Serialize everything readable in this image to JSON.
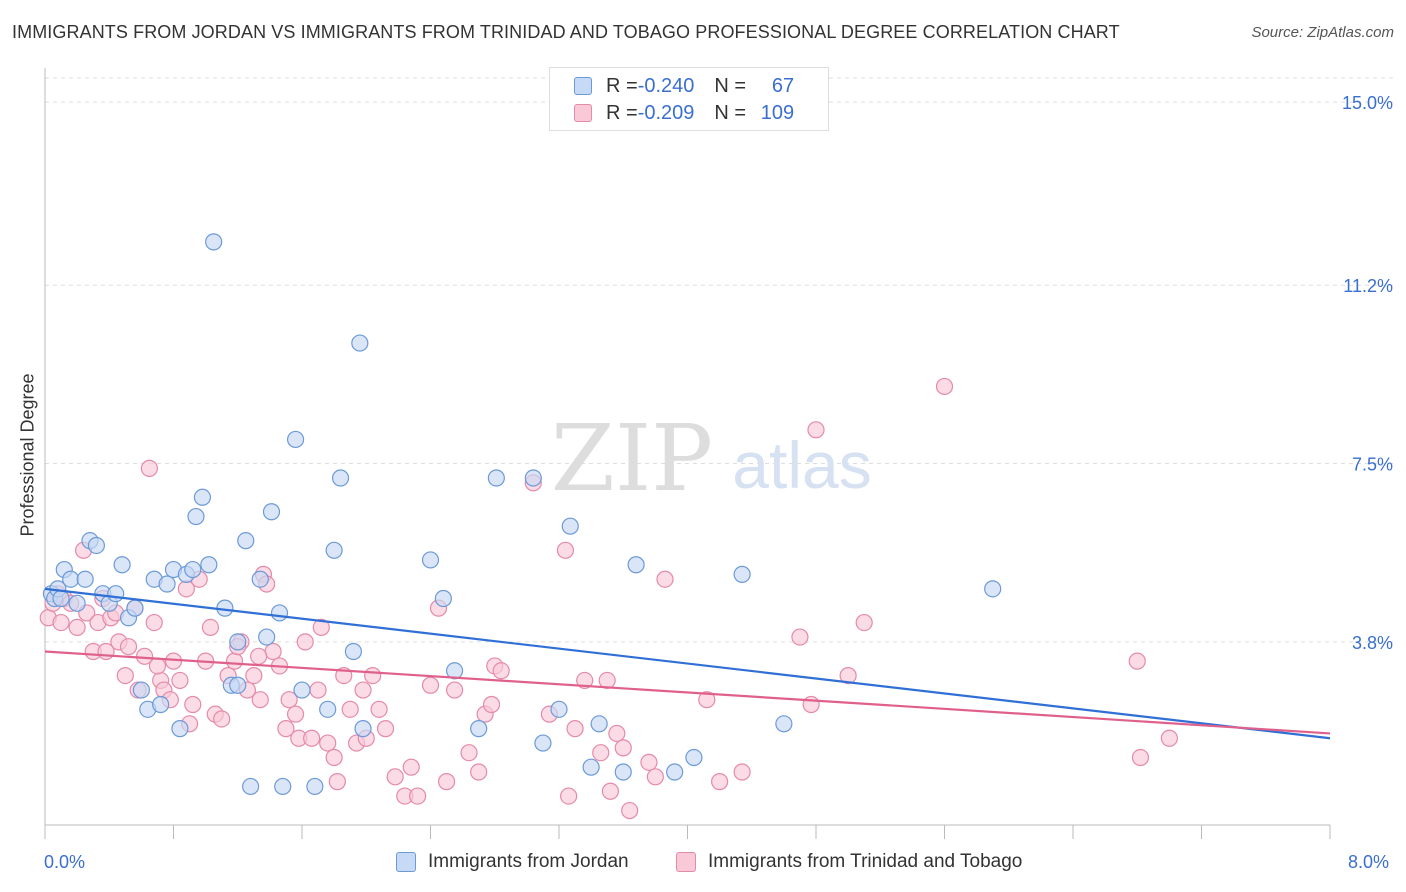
{
  "title": "IMMIGRANTS FROM JORDAN VS IMMIGRANTS FROM TRINIDAD AND TOBAGO PROFESSIONAL DEGREE CORRELATION CHART",
  "source": "Source: ZipAtlas.com",
  "watermark": {
    "zip": "ZIP",
    "atlas": "atlas"
  },
  "legend": {
    "rows": [
      {
        "r_label": "R = ",
        "r_value": "-0.240",
        "n_label": "N = ",
        "n_value": "67"
      },
      {
        "r_label": "R = ",
        "r_value": "-0.209",
        "n_label": "N = ",
        "n_value": "109"
      }
    ]
  },
  "bottom_legend": [
    "Immigrants from Jordan",
    "Immigrants from Trinidad and Tobago"
  ],
  "colors": {
    "jordan_fill": "#c6d9f5",
    "jordan_stroke": "#6c9ad8",
    "jordan_line": "#2f6fd6",
    "tt_fill": "#f9c9d8",
    "tt_stroke": "#e58aa8",
    "tt_line": "#e0608c",
    "tick_text": "#3a6fd0",
    "grid": "#dddddd"
  },
  "chart_data": {
    "type": "scatter",
    "title": "IMMIGRANTS FROM JORDAN VS IMMIGRANTS FROM TRINIDAD AND TOBAGO PROFESSIONAL DEGREE CORRELATION CHART",
    "xlabel": "",
    "ylabel": "Professional Degree",
    "xlim": [
      0,
      8.0
    ],
    "ylim": [
      0,
      15.5
    ],
    "x_tick_labels": [
      "0.0%",
      "8.0%"
    ],
    "y_ticks": [
      3.8,
      7.5,
      11.2,
      15.0
    ],
    "y_tick_labels": [
      "3.8%",
      "7.5%",
      "11.2%",
      "15.0%"
    ],
    "grid": "horizontal dashed",
    "series": [
      {
        "name": "Immigrants from Jordan",
        "r": -0.24,
        "n": 67,
        "trend": {
          "x": [
            0,
            8.0
          ],
          "y": [
            4.9,
            1.8
          ]
        },
        "points": [
          [
            0.04,
            4.8
          ],
          [
            0.06,
            4.7
          ],
          [
            0.08,
            4.9
          ],
          [
            0.1,
            4.7
          ],
          [
            0.12,
            5.3
          ],
          [
            0.16,
            5.1
          ],
          [
            0.2,
            4.6
          ],
          [
            0.25,
            5.1
          ],
          [
            0.28,
            5.9
          ],
          [
            0.32,
            5.8
          ],
          [
            0.36,
            4.8
          ],
          [
            0.4,
            4.6
          ],
          [
            0.44,
            4.8
          ],
          [
            0.48,
            5.4
          ],
          [
            0.52,
            4.3
          ],
          [
            0.56,
            4.5
          ],
          [
            0.6,
            2.8
          ],
          [
            0.64,
            2.4
          ],
          [
            0.68,
            5.1
          ],
          [
            0.72,
            2.5
          ],
          [
            0.76,
            5.0
          ],
          [
            0.8,
            5.3
          ],
          [
            0.84,
            2.0
          ],
          [
            0.88,
            5.2
          ],
          [
            0.92,
            5.3
          ],
          [
            0.94,
            6.4
          ],
          [
            0.98,
            6.8
          ],
          [
            1.02,
            5.4
          ],
          [
            1.05,
            12.1
          ],
          [
            1.12,
            4.5
          ],
          [
            1.16,
            2.9
          ],
          [
            1.2,
            3.8
          ],
          [
            1.25,
            5.9
          ],
          [
            1.28,
            0.8
          ],
          [
            1.34,
            5.1
          ],
          [
            1.38,
            3.9
          ],
          [
            1.41,
            6.5
          ],
          [
            1.46,
            4.4
          ],
          [
            1.48,
            0.8
          ],
          [
            1.56,
            8.0
          ],
          [
            1.6,
            2.8
          ],
          [
            1.68,
            0.8
          ],
          [
            1.76,
            2.4
          ],
          [
            1.8,
            5.7
          ],
          [
            1.84,
            7.2
          ],
          [
            1.92,
            3.6
          ],
          [
            1.96,
            10.0
          ],
          [
            1.98,
            2.0
          ],
          [
            2.4,
            5.5
          ],
          [
            2.48,
            4.7
          ],
          [
            2.55,
            3.2
          ],
          [
            2.7,
            2.0
          ],
          [
            2.81,
            7.2
          ],
          [
            3.1,
            1.7
          ],
          [
            3.2,
            2.4
          ],
          [
            3.27,
            6.2
          ],
          [
            3.4,
            1.2
          ],
          [
            3.45,
            2.1
          ],
          [
            3.6,
            1.1
          ],
          [
            3.68,
            5.4
          ],
          [
            3.92,
            1.1
          ],
          [
            4.04,
            1.4
          ],
          [
            4.34,
            5.2
          ],
          [
            4.6,
            2.1
          ],
          [
            5.9,
            4.9
          ],
          [
            3.04,
            7.2
          ],
          [
            1.2,
            2.9
          ]
        ]
      },
      {
        "name": "Immigrants from Trinidad and Tobago",
        "r": -0.209,
        "n": 109,
        "trend": {
          "x": [
            0,
            8.0
          ],
          "y": [
            3.6,
            1.9
          ]
        },
        "points": [
          [
            0.02,
            4.3
          ],
          [
            0.05,
            4.6
          ],
          [
            0.08,
            4.8
          ],
          [
            0.1,
            4.2
          ],
          [
            0.12,
            4.7
          ],
          [
            0.16,
            4.6
          ],
          [
            0.2,
            4.1
          ],
          [
            0.24,
            5.7
          ],
          [
            0.26,
            4.4
          ],
          [
            0.3,
            3.6
          ],
          [
            0.33,
            4.2
          ],
          [
            0.36,
            4.7
          ],
          [
            0.38,
            3.6
          ],
          [
            0.41,
            4.3
          ],
          [
            0.44,
            4.4
          ],
          [
            0.46,
            3.8
          ],
          [
            0.5,
            3.1
          ],
          [
            0.52,
            3.7
          ],
          [
            0.56,
            4.5
          ],
          [
            0.58,
            2.8
          ],
          [
            0.62,
            3.5
          ],
          [
            0.65,
            7.4
          ],
          [
            0.68,
            4.2
          ],
          [
            0.72,
            3.0
          ],
          [
            0.74,
            2.8
          ],
          [
            0.78,
            2.6
          ],
          [
            0.8,
            3.4
          ],
          [
            0.84,
            3.0
          ],
          [
            0.88,
            4.9
          ],
          [
            0.92,
            2.5
          ],
          [
            0.96,
            5.1
          ],
          [
            1.0,
            3.4
          ],
          [
            1.03,
            4.1
          ],
          [
            1.06,
            2.3
          ],
          [
            1.1,
            2.2
          ],
          [
            1.14,
            3.1
          ],
          [
            1.18,
            3.4
          ],
          [
            1.22,
            3.8
          ],
          [
            1.26,
            2.8
          ],
          [
            1.3,
            3.1
          ],
          [
            1.34,
            2.6
          ],
          [
            1.36,
            5.2
          ],
          [
            1.38,
            5.0
          ],
          [
            1.42,
            3.6
          ],
          [
            1.46,
            3.3
          ],
          [
            1.5,
            2.0
          ],
          [
            1.52,
            2.6
          ],
          [
            1.56,
            2.3
          ],
          [
            1.58,
            1.8
          ],
          [
            1.62,
            3.8
          ],
          [
            1.66,
            1.8
          ],
          [
            1.7,
            2.8
          ],
          [
            1.72,
            4.1
          ],
          [
            1.76,
            1.7
          ],
          [
            1.8,
            1.4
          ],
          [
            1.82,
            0.9
          ],
          [
            1.86,
            3.1
          ],
          [
            1.9,
            2.4
          ],
          [
            1.94,
            1.7
          ],
          [
            1.98,
            2.8
          ],
          [
            2.0,
            1.8
          ],
          [
            2.04,
            3.1
          ],
          [
            2.08,
            2.4
          ],
          [
            2.12,
            2.0
          ],
          [
            2.18,
            1.0
          ],
          [
            2.24,
            0.6
          ],
          [
            2.28,
            1.2
          ],
          [
            2.32,
            0.6
          ],
          [
            2.4,
            2.9
          ],
          [
            2.45,
            4.5
          ],
          [
            2.5,
            0.9
          ],
          [
            2.55,
            2.8
          ],
          [
            2.64,
            1.5
          ],
          [
            2.7,
            1.1
          ],
          [
            2.74,
            2.3
          ],
          [
            2.78,
            2.5
          ],
          [
            2.8,
            3.3
          ],
          [
            2.84,
            3.2
          ],
          [
            3.04,
            7.1
          ],
          [
            3.14,
            2.3
          ],
          [
            3.24,
            5.7
          ],
          [
            3.26,
            0.6
          ],
          [
            3.3,
            2.0
          ],
          [
            3.36,
            3.0
          ],
          [
            3.46,
            1.5
          ],
          [
            3.5,
            3.0
          ],
          [
            3.52,
            0.7
          ],
          [
            3.56,
            1.9
          ],
          [
            3.6,
            1.6
          ],
          [
            3.64,
            0.3
          ],
          [
            3.76,
            1.3
          ],
          [
            3.8,
            1.0
          ],
          [
            3.86,
            5.1
          ],
          [
            4.12,
            2.6
          ],
          [
            4.2,
            0.9
          ],
          [
            4.34,
            1.1
          ],
          [
            4.7,
            3.9
          ],
          [
            4.77,
            2.5
          ],
          [
            4.8,
            8.2
          ],
          [
            5.0,
            3.1
          ],
          [
            5.1,
            4.2
          ],
          [
            5.6,
            9.1
          ],
          [
            6.8,
            3.4
          ],
          [
            6.82,
            1.4
          ],
          [
            7.0,
            1.8
          ],
          [
            1.33,
            3.5
          ],
          [
            1.2,
            3.7
          ],
          [
            0.9,
            2.1
          ],
          [
            0.7,
            3.3
          ]
        ]
      }
    ]
  }
}
